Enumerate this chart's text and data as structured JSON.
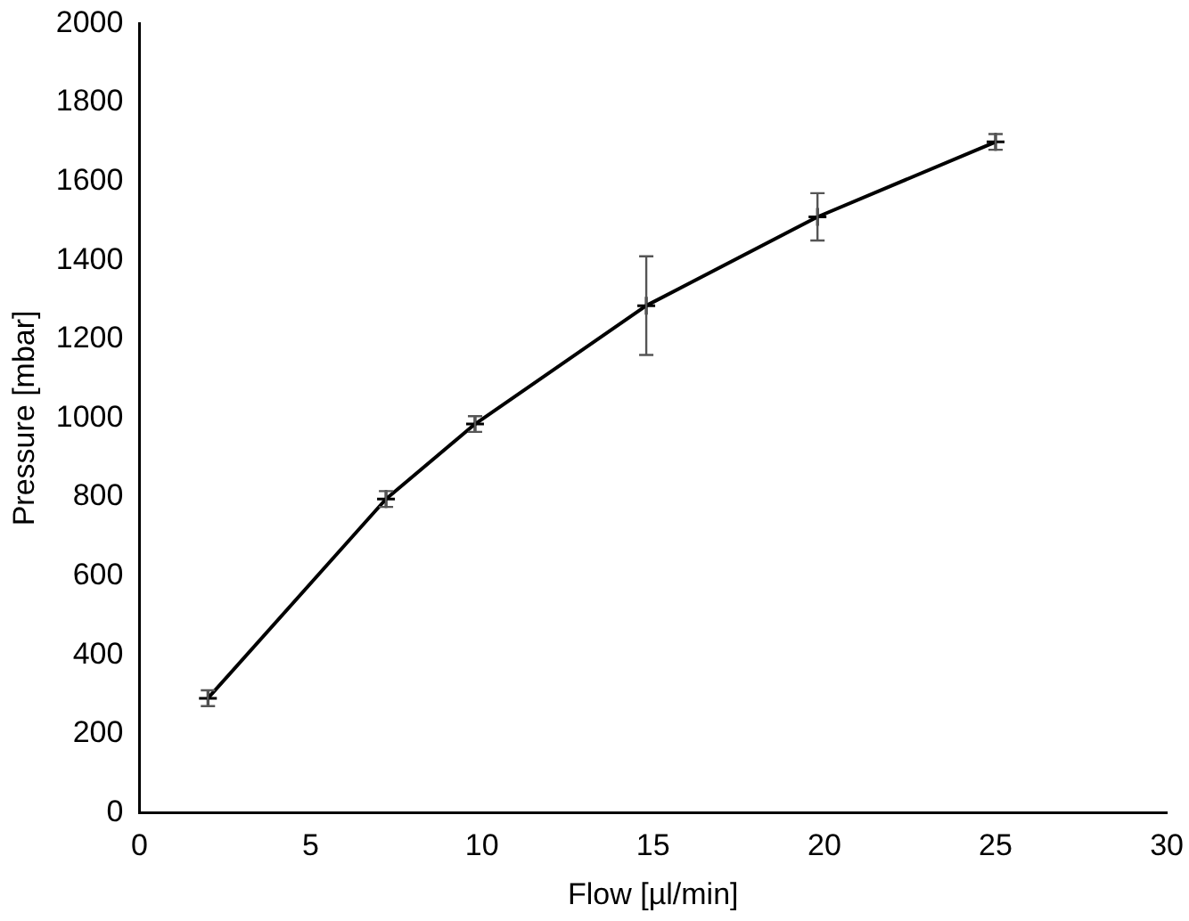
{
  "chart_data": {
    "type": "line",
    "xlabel": "Flow [µl/min]",
    "ylabel": "Pressure [mbar]",
    "x": [
      2,
      7.2,
      9.8,
      14.8,
      19.8,
      25
    ],
    "values": [
      290,
      795,
      985,
      1285,
      1510,
      1700
    ],
    "errors": [
      20,
      20,
      20,
      125,
      60,
      20
    ],
    "color": "#000000",
    "marker": "cross",
    "line_style": "solid",
    "xlim": [
      0,
      30
    ],
    "xticks": [
      0,
      5,
      10,
      15,
      20,
      25,
      30
    ],
    "ylim": [
      0,
      2000
    ],
    "yticks": [
      0,
      200,
      400,
      600,
      800,
      1000,
      1200,
      1400,
      1600,
      1800,
      2000
    ],
    "grid": false,
    "legend": false
  }
}
